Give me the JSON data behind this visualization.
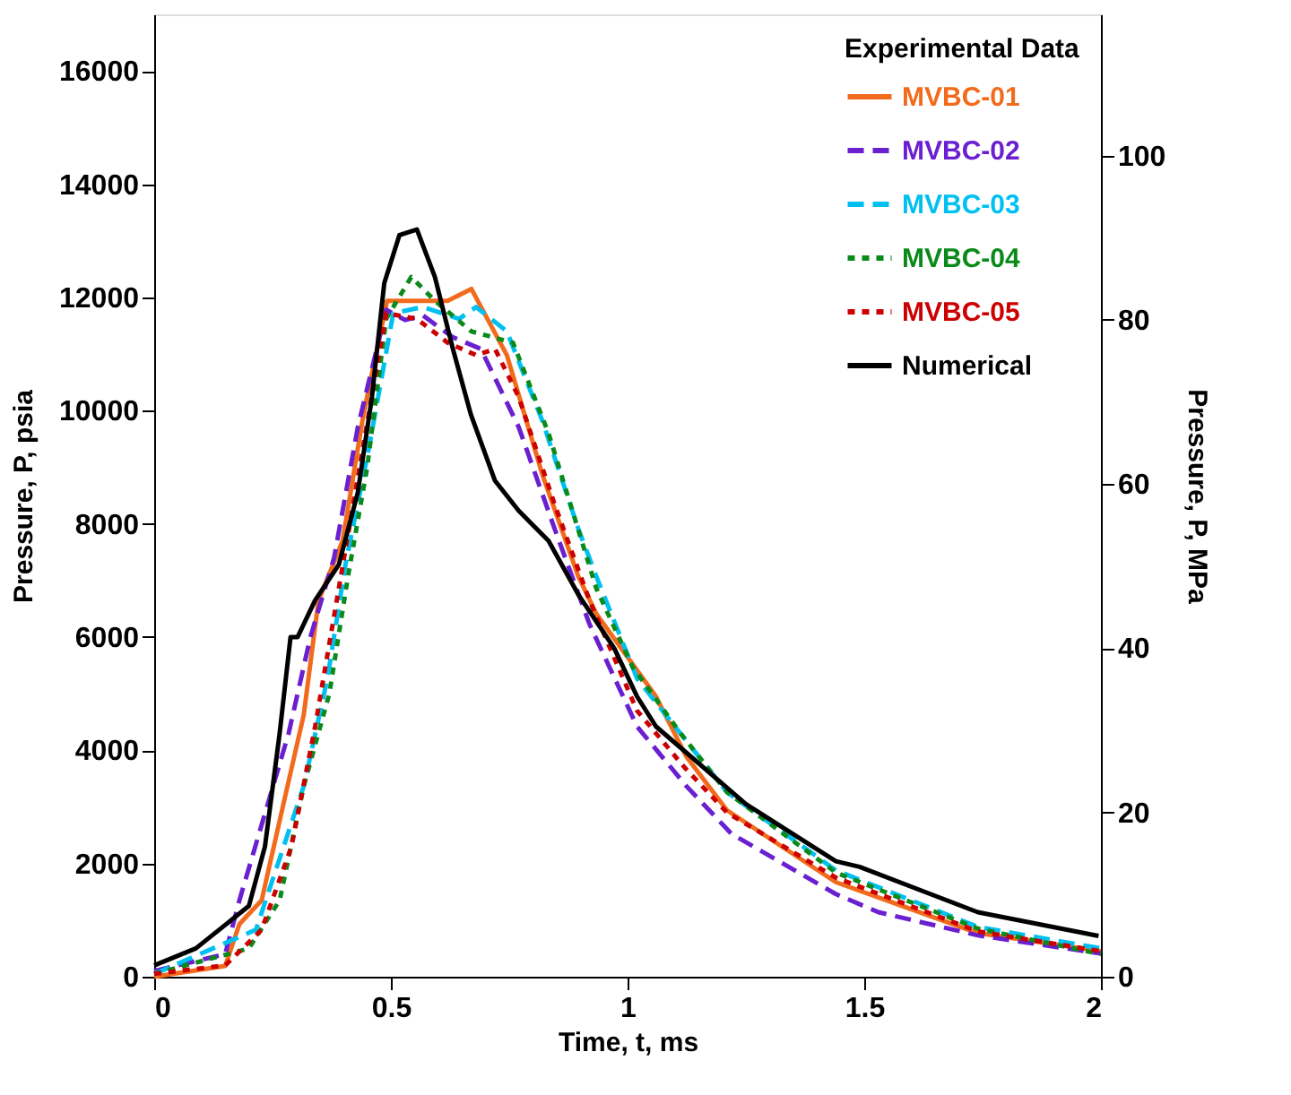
{
  "chart_data": {
    "type": "line",
    "xlabel": "Time, t, ms",
    "ylabel": "Pressure, P, psia",
    "y2label": "Pressure, P, MPa",
    "legend_title": "Experimental Data",
    "legend": "top right",
    "grid": false,
    "xlim": [
      0,
      2
    ],
    "xticks": [
      0,
      0.5,
      1,
      1.5,
      2
    ],
    "ylim": [
      0,
      17000
    ],
    "yticks": [
      0,
      2000,
      4000,
      6000,
      8000,
      10000,
      12000,
      14000,
      16000
    ],
    "y2lim": [
      0,
      117.2
    ],
    "y2ticks": [
      0,
      20,
      40,
      60,
      80,
      100
    ],
    "series": [
      {
        "name": "MVBC-01",
        "color": "#f26b1d",
        "line_style": "solid",
        "x": [
          0,
          0.15,
          0.18,
          0.227,
          0.27,
          0.316,
          0.347,
          0.398,
          0.442,
          0.492,
          0.53,
          0.62,
          0.67,
          0.745,
          0.82,
          0.896,
          0.934,
          1.06,
          1.124,
          1.21,
          1.44,
          1.74,
          2.0
        ],
        "values": [
          0,
          190,
          930,
          1350,
          2940,
          4630,
          6640,
          7700,
          9930,
          11940,
          11940,
          11940,
          12150,
          10980,
          8870,
          7070,
          6410,
          4950,
          3890,
          2940,
          1670,
          770,
          450
        ]
      },
      {
        "name": "MVBC-02",
        "color": "#6a1fd0",
        "line_style": "dashed",
        "x": [
          0,
          0.15,
          0.18,
          0.284,
          0.33,
          0.38,
          0.43,
          0.49,
          0.53,
          0.568,
          0.63,
          0.69,
          0.77,
          0.846,
          0.92,
          1.02,
          1.124,
          1.22,
          1.44,
          1.53,
          1.74,
          2.0
        ],
        "values": [
          100,
          400,
          1350,
          4300,
          6000,
          7400,
          9700,
          11780,
          11600,
          11680,
          11300,
          11090,
          9710,
          7910,
          6220,
          4420,
          3370,
          2520,
          1460,
          1140,
          730,
          410
        ]
      },
      {
        "name": "MVBC-03",
        "color": "#00c0f0",
        "line_style": "dashed",
        "x": [
          0,
          0.215,
          0.316,
          0.366,
          0.404,
          0.455,
          0.505,
          0.568,
          0.644,
          0.68,
          0.745,
          0.82,
          0.896,
          0.934,
          1.02,
          1.1,
          1.21,
          1.44,
          1.74,
          2.0
        ],
        "values": [
          50,
          830,
          3370,
          5270,
          7280,
          9400,
          11720,
          11830,
          11620,
          11830,
          11400,
          9820,
          7910,
          7070,
          5270,
          4420,
          3260,
          1880,
          880,
          500
        ]
      },
      {
        "name": "MVBC-04",
        "color": "#0a8a1a",
        "line_style": "dotted",
        "x": [
          0,
          0.2,
          0.265,
          0.316,
          0.37,
          0.41,
          0.45,
          0.49,
          0.543,
          0.593,
          0.67,
          0.758,
          0.833,
          0.934,
          1.01,
          1.11,
          1.21,
          1.44,
          1.74,
          2.0
        ],
        "values": [
          50,
          500,
          1350,
          3370,
          5000,
          7100,
          9000,
          11620,
          12360,
          11940,
          11400,
          11200,
          9600,
          6860,
          5480,
          4320,
          3260,
          1840,
          850,
          400
        ]
      },
      {
        "name": "MVBC-05",
        "color": "#cc0000",
        "line_style": "dotted",
        "x": [
          0,
          0.15,
          0.227,
          0.29,
          0.34,
          0.39,
          0.442,
          0.49,
          0.555,
          0.62,
          0.68,
          0.72,
          0.77,
          0.846,
          0.92,
          1.02,
          1.12,
          1.21,
          1.44,
          1.74,
          2.0
        ],
        "values": [
          50,
          200,
          830,
          2300,
          4420,
          6860,
          9400,
          11720,
          11620,
          11200,
          10980,
          11090,
          10240,
          8340,
          6640,
          4700,
          3700,
          2900,
          1750,
          800,
          450
        ]
      },
      {
        "name": "Numerical",
        "color": "#000000",
        "line_style": "solid",
        "x": [
          0,
          0.088,
          0.2,
          0.234,
          0.265,
          0.288,
          0.303,
          0.34,
          0.39,
          0.43,
          0.46,
          0.486,
          0.518,
          0.555,
          0.593,
          0.631,
          0.669,
          0.72,
          0.77,
          0.833,
          0.896,
          0.972,
          1.02,
          1.06,
          1.25,
          1.44,
          1.49,
          1.74,
          1.995
        ],
        "values": [
          200,
          500,
          1250,
          2300,
          4300,
          6000,
          6000,
          6650,
          7280,
          8550,
          10240,
          12250,
          13100,
          13200,
          12360,
          11090,
          9930,
          8760,
          8230,
          7700,
          6750,
          5800,
          4950,
          4420,
          3050,
          2040,
          1940,
          1140,
          720
        ]
      }
    ]
  }
}
